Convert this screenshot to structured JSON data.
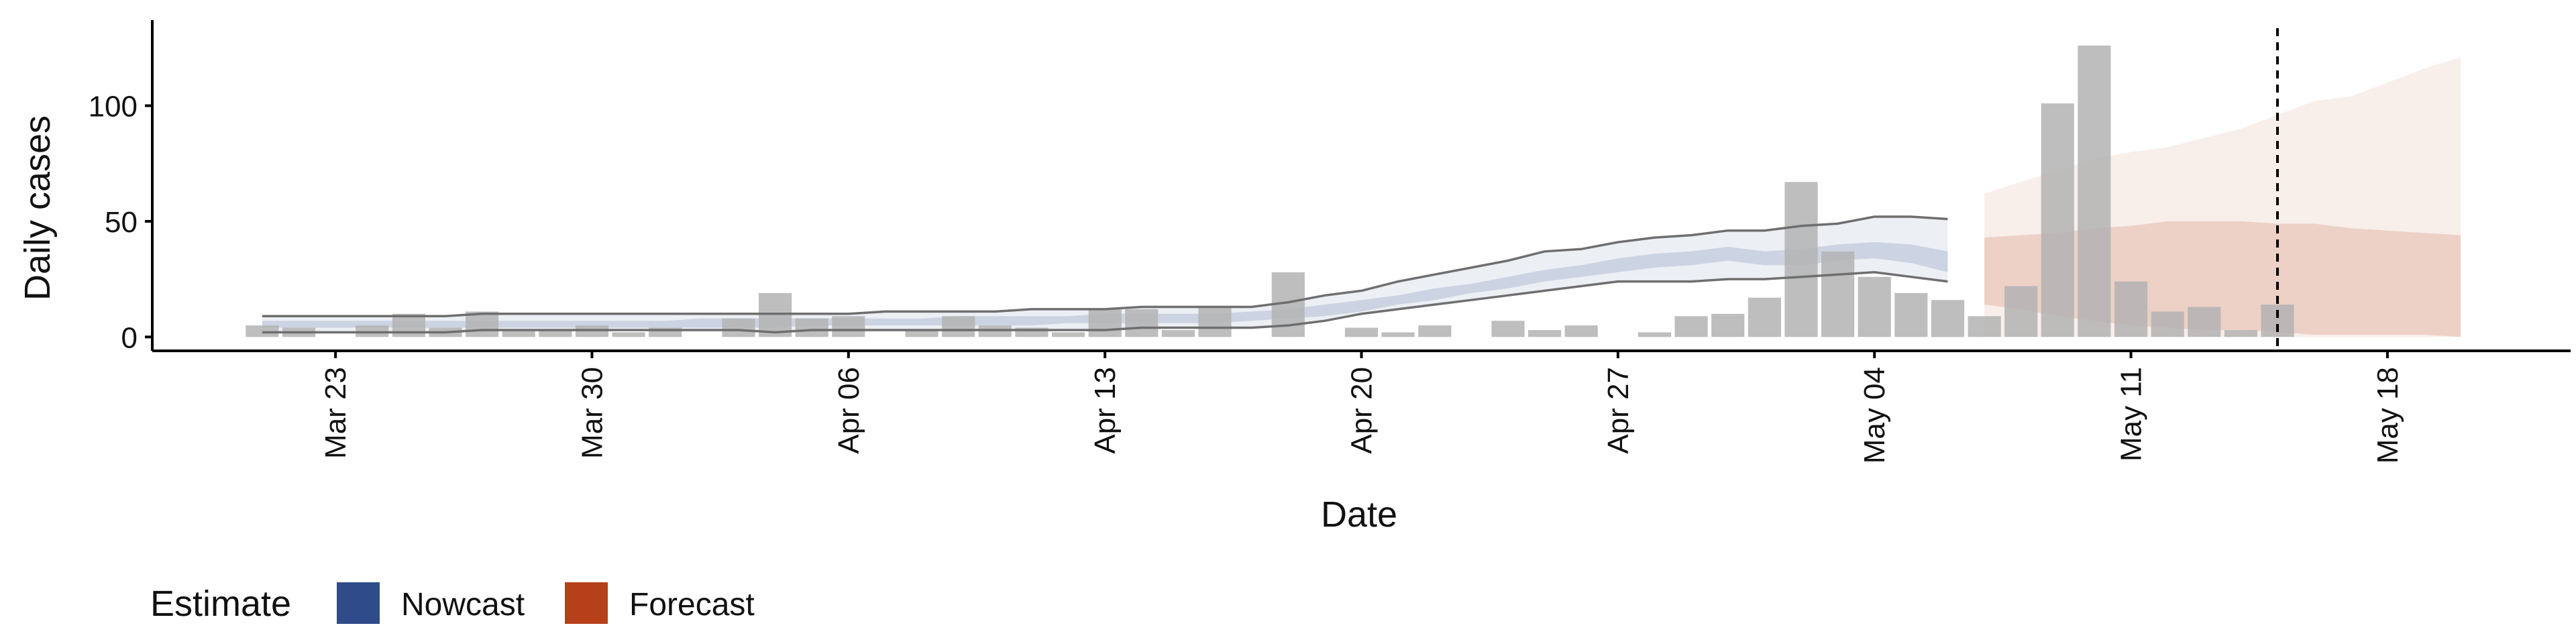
{
  "chart_data": {
    "type": "bar",
    "xlabel": "Date",
    "ylabel": "Daily cases",
    "xlim": [
      "2020-03-18",
      "2020-05-23"
    ],
    "ylim": [
      -6,
      137
    ],
    "y_ticks": [
      0,
      50,
      100
    ],
    "x_ticks": [
      {
        "date": "2020-03-23",
        "label": "Mar 23"
      },
      {
        "date": "2020-03-30",
        "label": "Mar 30"
      },
      {
        "date": "2020-04-06",
        "label": "Apr 06"
      },
      {
        "date": "2020-04-13",
        "label": "Apr 13"
      },
      {
        "date": "2020-04-20",
        "label": "Apr 20"
      },
      {
        "date": "2020-04-27",
        "label": "Apr 27"
      },
      {
        "date": "2020-05-04",
        "label": "May 04"
      },
      {
        "date": "2020-05-11",
        "label": "May 11"
      },
      {
        "date": "2020-05-18",
        "label": "May 18"
      }
    ],
    "grid": false,
    "bar_color": "#b3b3b3",
    "reported_cases": {
      "start_date": "2020-03-21",
      "values": [
        5,
        4,
        0,
        5,
        10,
        4,
        11,
        3,
        3,
        5,
        2,
        4,
        0,
        8,
        19,
        8,
        9,
        0,
        3,
        9,
        5,
        4,
        2,
        12,
        12,
        3,
        13,
        0,
        28,
        0,
        4,
        2,
        5,
        0,
        7,
        3,
        5,
        0,
        2,
        9,
        10,
        17,
        67,
        37,
        26,
        19,
        16,
        9,
        22,
        101,
        126,
        24,
        11,
        13,
        3,
        14
      ]
    },
    "vertical_line_date": "2020-05-15",
    "series": [
      {
        "name": "Nowcast",
        "color": "#2f4b8a",
        "start_date": "2020-03-21",
        "outer_lower": [
          2,
          2,
          2,
          2,
          2,
          2,
          3,
          3,
          3,
          3,
          3,
          3,
          3,
          3,
          2,
          3,
          3,
          3,
          3,
          3,
          3,
          3,
          3,
          3,
          4,
          4,
          4,
          4,
          5,
          7,
          10,
          12,
          14,
          16,
          18,
          20,
          22,
          24,
          24,
          24,
          25,
          25,
          26,
          27,
          28,
          26,
          24
        ],
        "outer_upper": [
          9,
          9,
          9,
          9,
          9,
          9,
          10,
          10,
          10,
          10,
          10,
          10,
          10,
          10,
          10,
          10,
          10,
          11,
          11,
          11,
          11,
          12,
          12,
          12,
          13,
          13,
          13,
          13,
          15,
          18,
          20,
          24,
          27,
          30,
          33,
          37,
          38,
          41,
          43,
          44,
          46,
          46,
          48,
          49,
          52,
          52,
          51
        ],
        "band_lower": [
          4,
          4,
          4,
          4,
          4,
          4,
          4,
          4,
          4,
          4,
          4,
          4,
          4,
          4,
          4,
          5,
          5,
          5,
          5,
          5,
          5,
          5,
          6,
          6,
          6,
          6,
          6,
          7,
          8,
          9,
          11,
          14,
          16,
          19,
          21,
          24,
          26,
          28,
          30,
          31,
          33,
          31,
          31,
          33,
          34,
          32,
          28
        ],
        "band_upper": [
          7,
          7,
          7,
          7,
          7,
          7,
          7,
          7,
          7,
          7,
          7,
          7,
          8,
          8,
          8,
          8,
          8,
          8,
          8,
          9,
          9,
          9,
          9,
          10,
          10,
          10,
          10,
          11,
          12,
          14,
          16,
          18,
          21,
          23,
          26,
          29,
          31,
          34,
          36,
          37,
          39,
          37,
          38,
          40,
          41,
          40,
          37
        ]
      },
      {
        "name": "Forecast",
        "color": "#b6401a",
        "start_date": "2020-05-07",
        "outer_lower": [
          0,
          0,
          0,
          0,
          0,
          0,
          0,
          0,
          0,
          0,
          0,
          0,
          0,
          0
        ],
        "outer_upper": [
          62,
          67,
          72,
          77,
          80,
          82,
          86,
          90,
          96,
          102,
          104,
          110,
          116,
          121
        ],
        "band_lower": [
          14,
          12,
          9,
          7,
          5,
          4,
          3,
          3,
          2,
          1,
          1,
          1,
          1,
          0
        ],
        "band_upper": [
          43,
          44,
          45,
          47,
          48,
          50,
          50,
          50,
          49,
          49,
          47,
          46,
          45,
          44
        ]
      }
    ],
    "legend": {
      "title": "Estimate",
      "position": "bottom-left",
      "items": [
        {
          "label": "Nowcast",
          "color": "#2f4b8a"
        },
        {
          "label": "Forecast",
          "color": "#b6401a"
        }
      ]
    }
  }
}
